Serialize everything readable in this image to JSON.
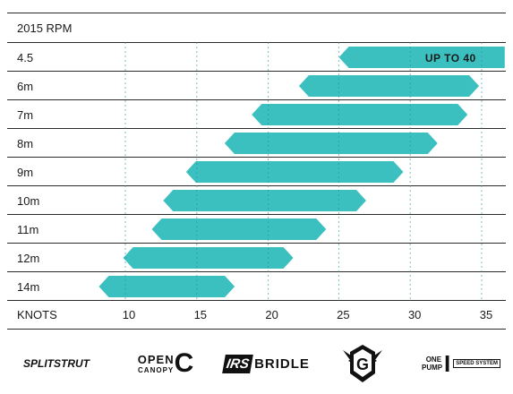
{
  "chart_data": {
    "type": "bar",
    "orientation": "horizontal-range",
    "title": "2015 RPM",
    "xlabel": "KNOTS",
    "xticks": [
      10,
      15,
      20,
      25,
      30,
      35
    ],
    "xlim": [
      6.9,
      36.3
    ],
    "bar_color": "#3bbfbf",
    "grid": "vertical dashed at ticks",
    "series": [
      {
        "label": "4.5",
        "min": 24.7,
        "max": 36.3,
        "annotation": "UP TO 40"
      },
      {
        "label": "6m",
        "min": 21.9,
        "max": 34.5
      },
      {
        "label": "7m",
        "min": 18.6,
        "max": 33.7
      },
      {
        "label": "8m",
        "min": 16.7,
        "max": 31.6
      },
      {
        "label": "9m",
        "min": 14.0,
        "max": 29.2
      },
      {
        "label": "10m",
        "min": 12.4,
        "max": 26.6
      },
      {
        "label": "11m",
        "min": 11.6,
        "max": 23.8
      },
      {
        "label": "12m",
        "min": 9.6,
        "max": 21.5
      },
      {
        "label": "14m",
        "min": 7.9,
        "max": 17.4
      }
    ]
  },
  "logos": [
    {
      "name": "SPLITSTRUT"
    },
    {
      "name": "OPEN",
      "sub": "CANOPY",
      "mark": "C"
    },
    {
      "name": "IRS",
      "sub": "BRIDLE"
    },
    {
      "name": "G",
      "sub": ""
    },
    {
      "name": "ONE PUMP",
      "mark": "I",
      "sub": "SPEED SYSTEM"
    }
  ]
}
